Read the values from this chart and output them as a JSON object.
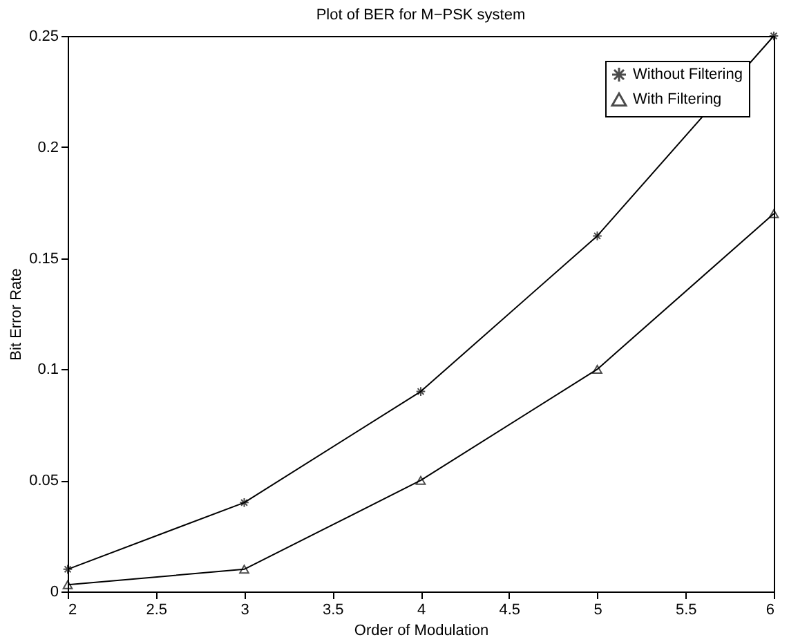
{
  "chart_data": {
    "type": "line",
    "title": "Plot of BER for M−PSK system",
    "xlabel": "Order of Modulation",
    "ylabel": "Bit Error Rate",
    "x": [
      2,
      3,
      4,
      5,
      6
    ],
    "series": [
      {
        "name": "Without Filtering",
        "color": "#000000",
        "marker": "cross",
        "values": [
          0.01,
          0.04,
          0.09,
          0.16,
          0.25
        ]
      },
      {
        "name": "With Filtering",
        "color": "#000000",
        "marker": "triangle",
        "values": [
          0.003,
          0.01,
          0.05,
          0.1,
          0.17
        ]
      }
    ],
    "xlim": [
      2,
      6
    ],
    "xticks": [
      2,
      2.5,
      3,
      3.5,
      4,
      4.5,
      5,
      5.5,
      6
    ],
    "ylim": [
      0,
      0.25
    ],
    "yticks": [
      0,
      0.05,
      0.1,
      0.15,
      0.2,
      0.25
    ],
    "grid": false,
    "legend": "top right",
    "line_style": "solid"
  }
}
